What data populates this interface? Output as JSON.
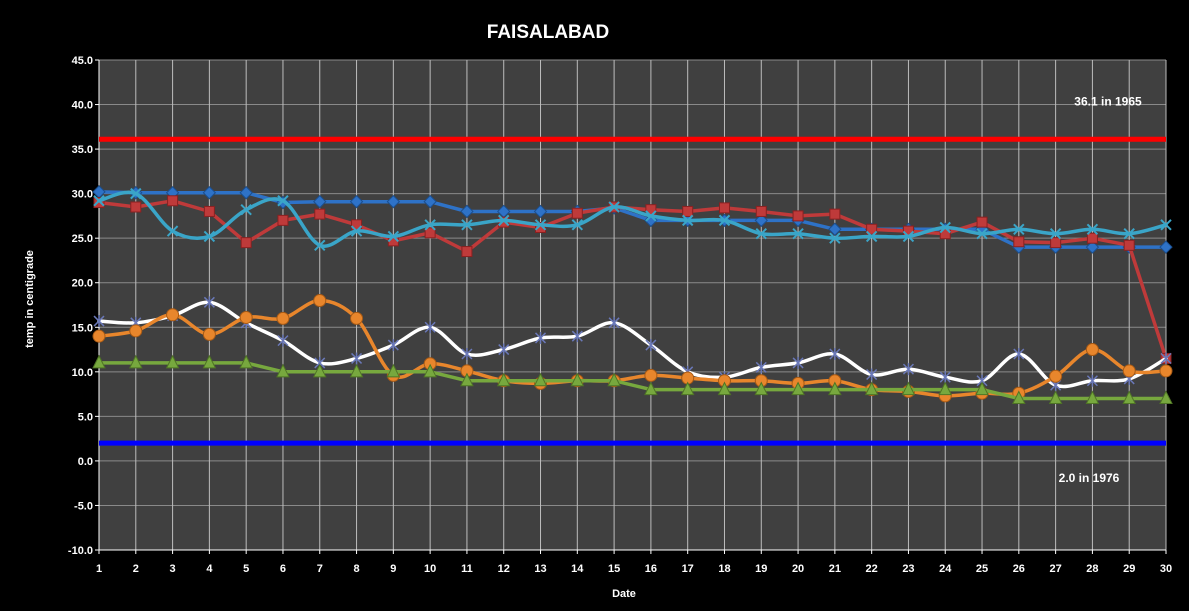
{
  "chart_data": {
    "type": "line",
    "title": "FAISALABAD",
    "xlabel": "Date",
    "ylabel": "temp in centigrade",
    "x": [
      1,
      2,
      3,
      4,
      5,
      6,
      7,
      8,
      9,
      10,
      11,
      12,
      13,
      14,
      15,
      16,
      17,
      18,
      19,
      20,
      21,
      22,
      23,
      24,
      25,
      26,
      27,
      28,
      29,
      30
    ],
    "ylim": [
      -10,
      45
    ],
    "yticks": [
      "45.0",
      "40.0",
      "35.0",
      "30.0",
      "25.0",
      "20.0",
      "15.0",
      "10.0",
      "5.0",
      "0.0",
      "-5.0",
      "-10.0"
    ],
    "grid": true,
    "plot_background": "#404040",
    "series": [
      {
        "color": "#2e72c7",
        "marker": "diamond",
        "smooth": false,
        "values": [
          30.2,
          30.1,
          30.1,
          30.1,
          30.1,
          29,
          29.1,
          29.1,
          29.1,
          29.1,
          28,
          28,
          28,
          28,
          28.4,
          27,
          27,
          27,
          27,
          27,
          26,
          26,
          26,
          26,
          26,
          24,
          24,
          24,
          24,
          24
        ]
      },
      {
        "color": "#bf3a3a",
        "marker": "square",
        "smooth": false,
        "values": [
          29,
          28.5,
          29.2,
          28,
          24.5,
          27,
          27.7,
          26.5,
          24.7,
          25.6,
          23.5,
          26.8,
          26.2,
          27.8,
          28.5,
          28.2,
          28,
          28.4,
          28,
          27.5,
          27.7,
          26,
          25.8,
          25.5,
          26.8,
          24.6,
          24.5,
          25,
          24.2,
          11.5
        ]
      },
      {
        "color": "#3aa5c8",
        "marker": "x",
        "smooth": true,
        "values": [
          29.2,
          30,
          25.8,
          25.2,
          28.2,
          29.2,
          24.2,
          25.8,
          25.2,
          26.5,
          26.5,
          27,
          26.5,
          26.5,
          28.5,
          27.5,
          27,
          27,
          25.5,
          25.5,
          25,
          25.2,
          25.2,
          26.2,
          25.5,
          26,
          25.5,
          26,
          25.5,
          26.5
        ]
      },
      {
        "color": "#ffffff",
        "marker": "star",
        "smooth": true,
        "values": [
          15.7,
          15.5,
          16.3,
          17.8,
          15.5,
          13.5,
          11,
          11.5,
          13,
          15,
          12,
          12.5,
          13.8,
          14,
          15.5,
          13,
          10,
          9.4,
          10.5,
          11,
          12,
          9.7,
          10.3,
          9.4,
          9,
          12,
          8.5,
          9,
          9.2,
          11.5
        ]
      },
      {
        "color": "#e8862c",
        "marker": "circle",
        "smooth": true,
        "values": [
          14,
          14.6,
          16.4,
          14.2,
          16.1,
          16,
          18,
          16,
          9.6,
          10.9,
          10.1,
          9,
          8.7,
          9,
          9,
          9.6,
          9.3,
          9,
          9,
          8.7,
          9,
          8,
          7.8,
          7.3,
          7.6,
          7.6,
          9.5,
          12.5,
          10.1,
          10.1
        ]
      },
      {
        "color": "#77a83e",
        "marker": "triangle",
        "smooth": false,
        "values": [
          11,
          11,
          11,
          11,
          11,
          10,
          10,
          10,
          10,
          10,
          9,
          9,
          9,
          9,
          9,
          8,
          8,
          8,
          8,
          8,
          8,
          8,
          8,
          8,
          8,
          7,
          7,
          7,
          7,
          7
        ]
      }
    ],
    "reference_lines": [
      {
        "value": 36.1,
        "color": "#ff0000",
        "label": "36.1 in 1965"
      },
      {
        "value": 2.0,
        "color": "#0000ff",
        "label": "2.0 in 1976"
      }
    ]
  }
}
